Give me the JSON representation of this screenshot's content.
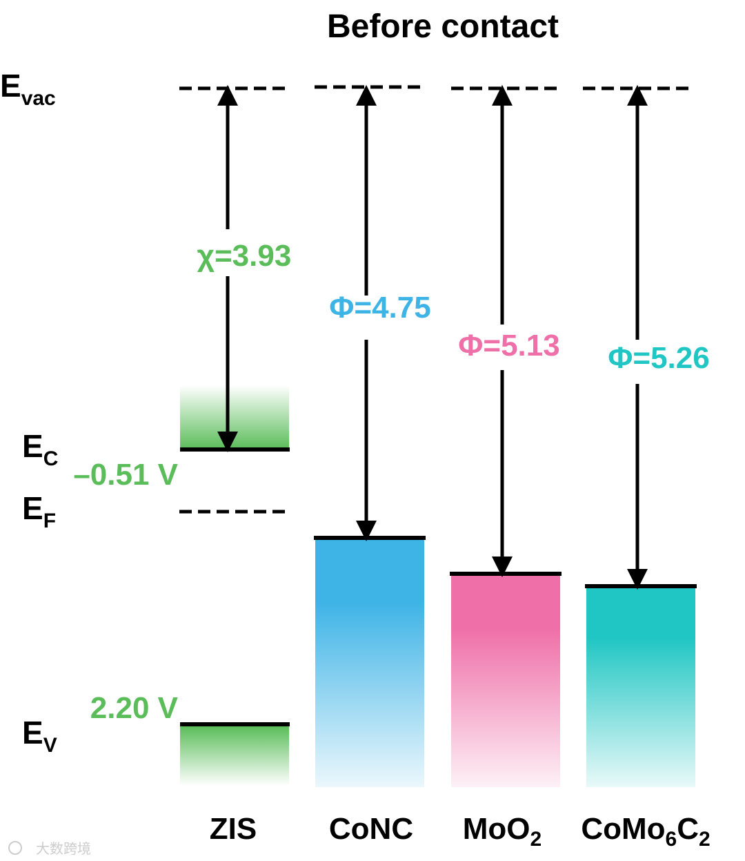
{
  "title": "Before contact",
  "levels": {
    "vac": {
      "letter": "E",
      "sub": "vac"
    },
    "c": {
      "letter": "E",
      "sub": "C"
    },
    "f": {
      "letter": "E",
      "sub": "F"
    },
    "v": {
      "letter": "E",
      "sub": "V"
    }
  },
  "zis": {
    "name": "ZIS",
    "chi_label": "χ=3.93",
    "cb_potential": "–0.51 V",
    "vb_potential": "2.20 V",
    "color": "#5bbd5a"
  },
  "materials": [
    {
      "key": "conc",
      "name_parts": [
        {
          "t": "CoNC",
          "sub": false
        }
      ],
      "label": "Φ=4.75",
      "work_function": 4.75,
      "color": "#3db3e6"
    },
    {
      "key": "moo2",
      "name_parts": [
        {
          "t": "MoO",
          "sub": false
        },
        {
          "t": "2",
          "sub": true
        }
      ],
      "label": "Φ=5.13",
      "work_function": 5.13,
      "color": "#ef6fa8"
    },
    {
      "key": "como6c2",
      "name_parts": [
        {
          "t": "CoMo",
          "sub": false
        },
        {
          "t": "6",
          "sub": true
        },
        {
          "t": "C",
          "sub": false
        },
        {
          "t": "2",
          "sub": true
        }
      ],
      "label": "Φ=5.26",
      "work_function": 5.26,
      "color": "#1fc6c3"
    }
  ],
  "watermark": "大数跨境",
  "colors": {
    "zis_green": "#5bbd5a",
    "conc_blue": "#3db3e6",
    "moo2_pink": "#ef6fa8",
    "como6c2_teal": "#1fc6c3"
  }
}
